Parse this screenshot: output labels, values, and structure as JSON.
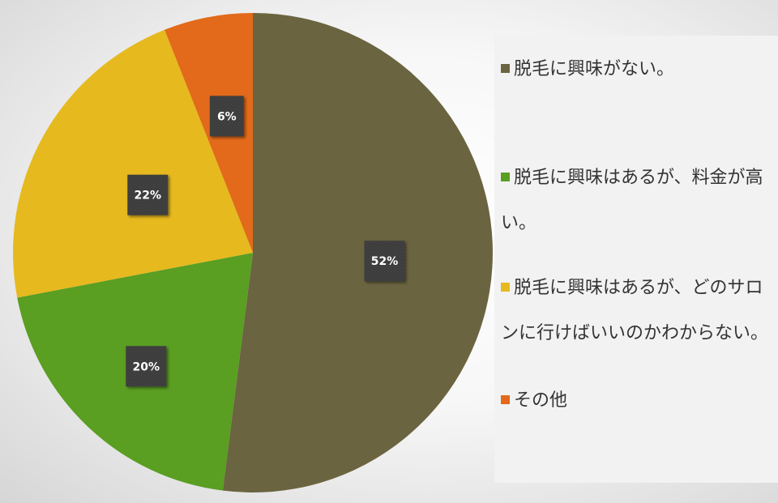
{
  "chart_data": {
    "type": "pie",
    "categories": [
      "脱毛に興味がない。",
      "脱毛に興味はあるが、料金が高い。",
      "脱毛に興味はあるが、どのサロンに行けばいいのかわからない。",
      "その他"
    ],
    "values": [
      52,
      20,
      22,
      6
    ],
    "data_labels": [
      "52%",
      "20%",
      "22%",
      "6%"
    ],
    "colors": [
      "#6b6440",
      "#5a9e22",
      "#e6b91e",
      "#e26a1a"
    ],
    "start_angle": "12 o'clock",
    "direction": "clockwise",
    "legend_position": "right"
  }
}
